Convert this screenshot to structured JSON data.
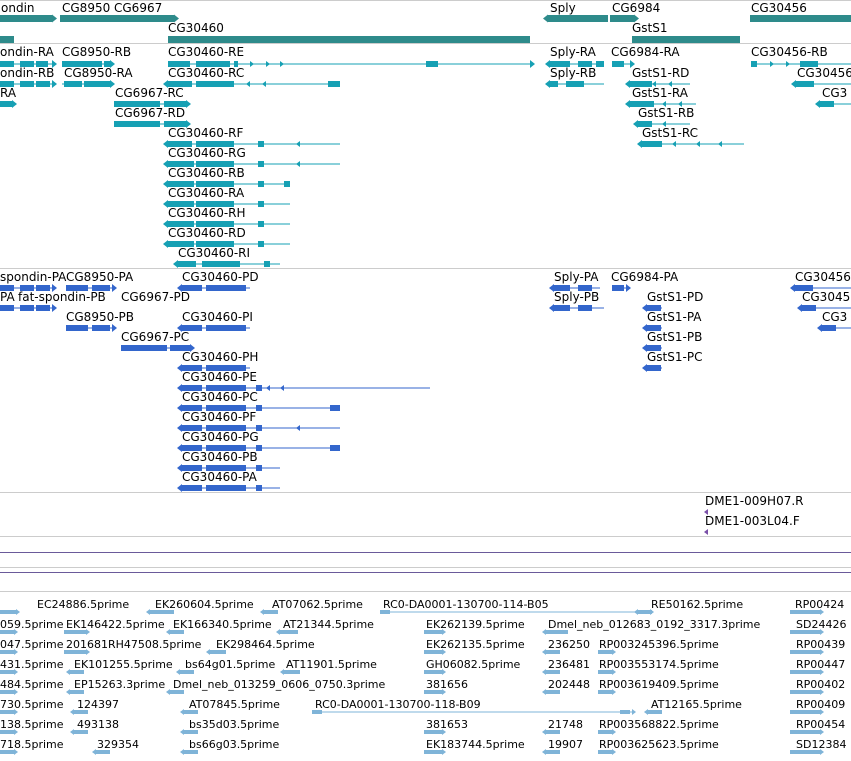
{
  "colors": {
    "gene_teal": "#2e8b8b",
    "transcript_teal": "#16a0b4",
    "protein_blue": "#3366cc",
    "clone_purple": "#7a50a8",
    "est_lightblue": "#7fb4d8",
    "divider": "#cccccc",
    "track_line": "#6a5a9a"
  },
  "gene_track": {
    "labels": [
      "ondin",
      "CG8950",
      "CG6967",
      "CG30460",
      "Sply",
      "CG6984",
      "GstS1",
      "CG30456"
    ]
  },
  "transcript_track": {
    "labels": [
      "ondin-RA",
      "CG8950-RB",
      "CG30460-RE",
      "Sply-RA",
      "CG6984-RA",
      "CG30456-RB",
      "ondin-RB",
      "CG8950-RA",
      "CG30460-RC",
      "Sply-RB",
      "GstS1-RD",
      "CG30456",
      "RA",
      "CG6967-RC",
      "GstS1-RA",
      "CG3",
      "CG6967-RD",
      "GstS1-RB",
      "CG30460-RF",
      "GstS1-RC",
      "CG30460-RG",
      "CG30460-RB",
      "CG30460-RA",
      "CG30460-RH",
      "CG30460-RD",
      "CG30460-RI"
    ]
  },
  "protein_track": {
    "labels": [
      "spondin-PA",
      "CG8950-PA",
      "CG30460-PD",
      "Sply-PA",
      "CG6984-PA",
      "CG30456",
      "PA",
      "fat-spondin-PB",
      "CG6967-PD",
      "Sply-PB",
      "GstS1-PD",
      "CG3045",
      "CG8950-PB",
      "CG30460-PI",
      "GstS1-PA",
      "CG3",
      "CG6967-PC",
      "GstS1-PB",
      "CG30460-PH",
      "GstS1-PC",
      "CG30460-PE",
      "CG30460-PC",
      "CG30460-PF",
      "CG30460-PG",
      "CG30460-PB",
      "CG30460-PA"
    ]
  },
  "clone_track": {
    "labels": [
      "DME1-009H07.R",
      "DME1-003L04.F"
    ]
  },
  "est_track": {
    "labels": [
      "EC24886.5prime",
      "EK260604.5prime",
      "AT07062.5prime",
      "RC0-DA0001-130700-114-B05",
      "RE50162.5prime",
      "RP00424",
      "059.5prime",
      "EK146422.5prime",
      "EK166340.5prime",
      "AT21344.5prime",
      "EK262139.5prime",
      "Dmel_neb_012683_0192_3317.3prime",
      "SD24426",
      "047.5prime",
      "201681RH47508.5prime",
      "EK298464.5prime",
      "EK262135.5prime",
      "236250",
      "RP003245396.5prime",
      "RP00439",
      "431.5prime",
      "EK101255.5prime",
      "bs64g01.5prime",
      "AT11901.5prime",
      "GH06082.5prime",
      "236481",
      "RP003553174.5prime",
      "RP00447",
      "484.5prime",
      "EP15263.3prime",
      "Dmel_neb_013259_0606_0750.3prime",
      "381656",
      "202448",
      "RP003619409.5prime",
      "RP00402",
      "730.5prime",
      "124397",
      "AT07845.5prime",
      "RC0-DA0001-130700-118-B09",
      "AT12165.5prime",
      "RP00409",
      "138.5prime",
      "493138",
      "bs35d03.5prime",
      "381653",
      "21748",
      "RP003568822.5prime",
      "RP00454",
      "718.5prime",
      "329354",
      "bs66g03.5prime",
      "EK183744.5prime",
      "19907",
      "RP003625623.5prime",
      "SD12384"
    ]
  }
}
